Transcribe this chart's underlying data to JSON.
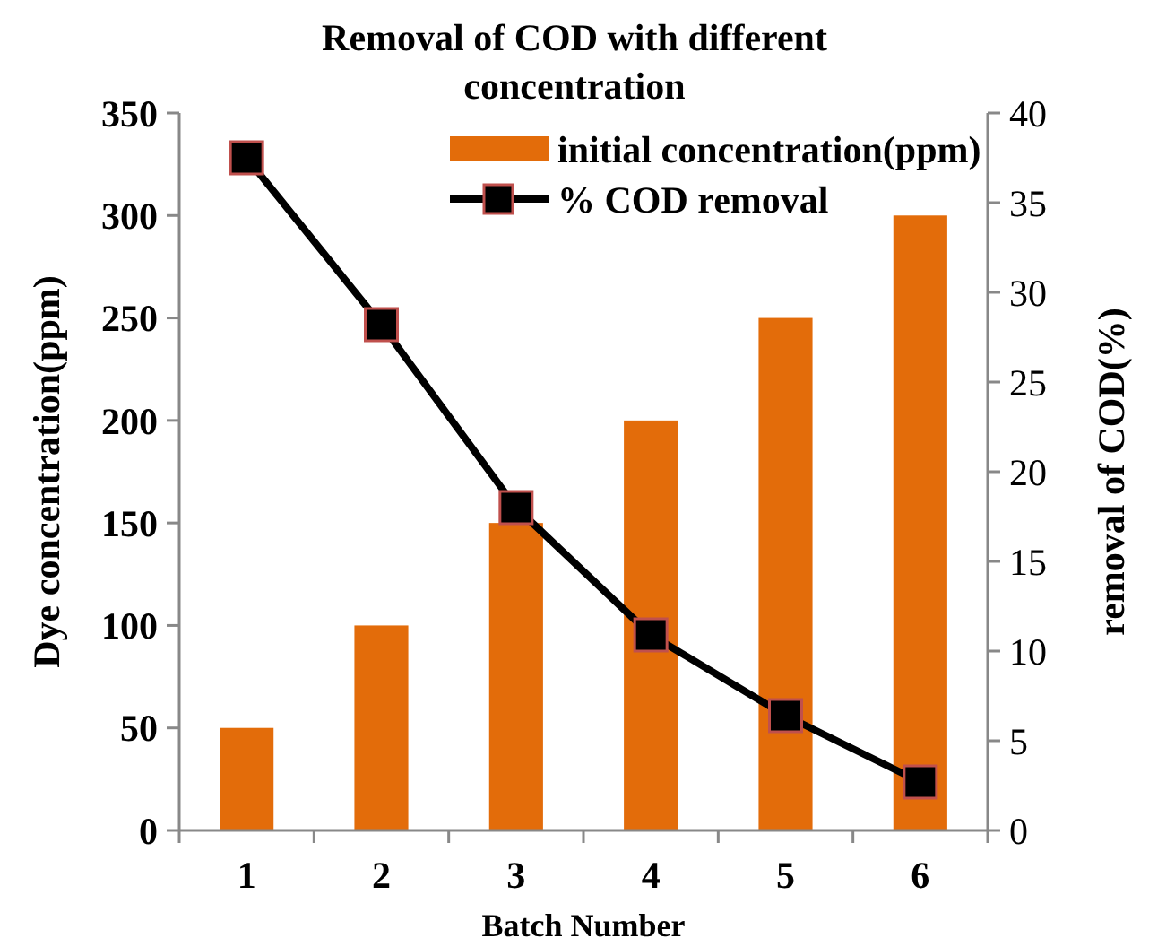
{
  "chart_data": {
    "type": "bar",
    "title": "Removal of COD with different concentration",
    "xlabel": "Batch Number",
    "ylabel": "Dye concentration(ppm)",
    "y2label": "removal of COD(%)",
    "categories": [
      "1",
      "2",
      "3",
      "4",
      "5",
      "6"
    ],
    "series": [
      {
        "name": "initial concentration(ppm)",
        "color": "#e36c0a",
        "values": [
          50,
          100,
          150,
          200,
          250,
          300
        ]
      },
      {
        "name": "% COD removal",
        "type": "line",
        "axis": "y2",
        "color": "#000000",
        "marker": "square",
        "values": [
          37.5,
          28.2,
          18.0,
          10.9,
          6.4,
          2.7
        ]
      }
    ],
    "ylim": [
      0,
      350
    ],
    "yticks": [
      0,
      50,
      100,
      150,
      200,
      250,
      300,
      350
    ],
    "y2lim": [
      0,
      40
    ],
    "y2ticks": [
      0,
      5,
      10,
      15,
      20,
      25,
      30,
      35,
      40
    ],
    "legend": "top right",
    "grid": false
  }
}
